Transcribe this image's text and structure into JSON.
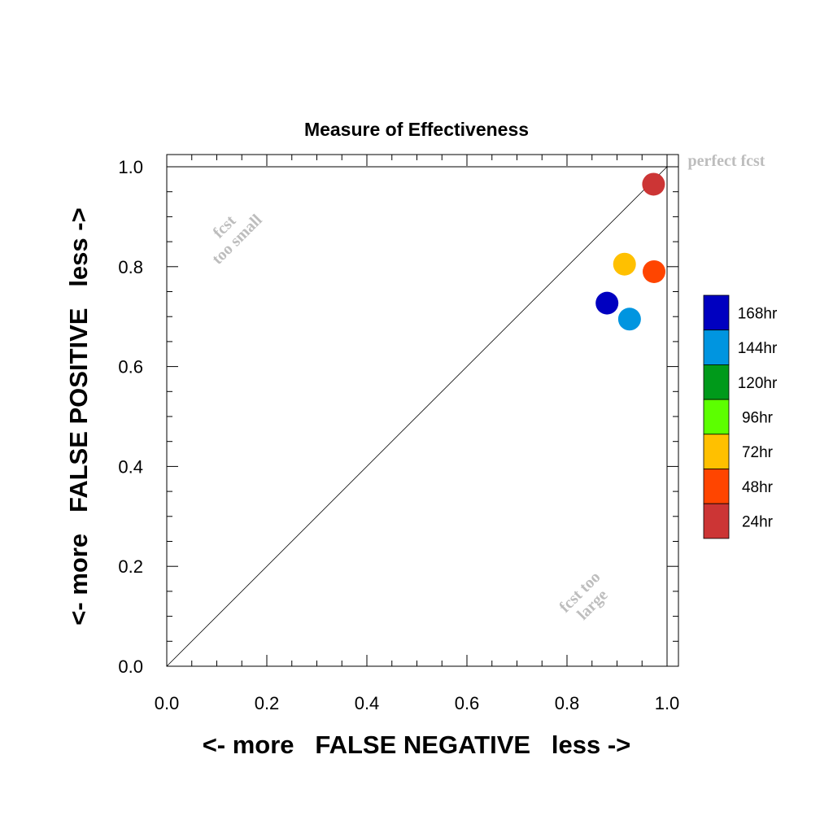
{
  "chart_data": {
    "type": "scatter",
    "title": "Measure of Effectiveness",
    "xlabel": "<- more   FALSE NEGATIVE   less ->",
    "ylabel": "<- more   FALSE POSITIVE   less ->",
    "xlim": [
      0,
      1
    ],
    "ylim": [
      0,
      1
    ],
    "xticks": [
      "0.0",
      "0.2",
      "0.4",
      "0.6",
      "0.8",
      "1.0"
    ],
    "yticks": [
      "0.0",
      "0.2",
      "0.4",
      "0.6",
      "0.8",
      "1.0"
    ],
    "grid": false,
    "diagonal_line": true,
    "annotations": [
      {
        "id": "perfect",
        "lines": [
          "perfect fcst"
        ]
      },
      {
        "id": "too-small",
        "lines": [
          "fcst",
          "too small"
        ]
      },
      {
        "id": "too-large",
        "lines": [
          "fcst too",
          "large"
        ]
      }
    ],
    "legend": {
      "placement": "right",
      "entries": [
        {
          "label": "168hr",
          "color": "#0000c0"
        },
        {
          "label": "144hr",
          "color": "#0095e0"
        },
        {
          "label": "120hr",
          "color": "#009a1a"
        },
        {
          "label": "96hr",
          "color": "#5cff00"
        },
        {
          "label": "72hr",
          "color": "#ffc000"
        },
        {
          "label": "48hr",
          "color": "#ff4500"
        },
        {
          "label": "24hr",
          "color": "#cc3535"
        }
      ]
    },
    "points": [
      {
        "series": "24hr",
        "x": 0.973,
        "y": 0.965,
        "color": "#cc3535"
      },
      {
        "series": "48hr",
        "x": 0.974,
        "y": 0.79,
        "color": "#ff4500"
      },
      {
        "series": "72hr",
        "x": 0.915,
        "y": 0.805,
        "color": "#ffc000"
      },
      {
        "series": "168hr",
        "x": 0.88,
        "y": 0.727,
        "color": "#0000c0"
      },
      {
        "series": "144hr",
        "x": 0.925,
        "y": 0.695,
        "color": "#0095e0"
      }
    ]
  }
}
